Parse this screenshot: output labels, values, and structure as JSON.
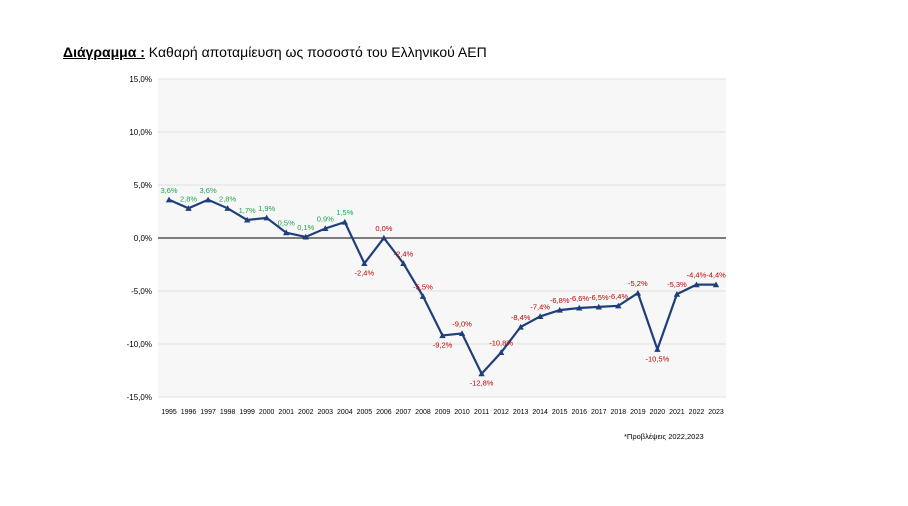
{
  "title": {
    "lead": "Διάγραμμα :",
    "text": "Καθαρή αποταμίευση ως ποσοστό του Ελληνικού ΑΕΠ"
  },
  "footnote": "*Προβλέψεις 2022,2023",
  "colors": {
    "line": "#1f3f7a",
    "positive_label": "#1fa34a",
    "negative_label": "#c00000",
    "plot_bg": "#f7f7f7",
    "grid": "#d9d9d9",
    "zero_line": "#000000"
  },
  "chart_data": {
    "type": "line",
    "categories": [
      "1995",
      "1996",
      "1997",
      "1998",
      "1999",
      "2000",
      "2001",
      "2002",
      "2003",
      "2004",
      "2005",
      "2006",
      "2007",
      "2008",
      "2009",
      "2010",
      "2011",
      "2012",
      "2013",
      "2014",
      "2015",
      "2016",
      "2017",
      "2018",
      "2019",
      "2020",
      "2021",
      "2022",
      "2023"
    ],
    "values": [
      3.6,
      2.8,
      3.6,
      2.8,
      1.7,
      1.9,
      0.5,
      0.1,
      0.9,
      1.5,
      -2.4,
      0.0,
      -2.4,
      -5.5,
      -9.2,
      -9.0,
      -12.8,
      -10.8,
      -8.4,
      -7.4,
      -6.8,
      -6.6,
      -6.5,
      -6.4,
      -5.2,
      -10.5,
      -5.3,
      -4.4,
      -4.4
    ],
    "data_labels": [
      "3,6%",
      "2,8%",
      "3,6%",
      "2,8%",
      "1,7%",
      "1,9%",
      "0,5%",
      "0,1%",
      "0,9%",
      "1,5%",
      "-2,4%",
      "0,0%",
      "-2,4%",
      "-5,5%",
      "-9,2%",
      "-9,0%",
      "-12,8%",
      "-10,8%",
      "-8,4%",
      "-7,4%",
      "-6,8%",
      "-6,6%",
      "-6,5%",
      "-6,4%",
      "-5,2%",
      "-10,5%",
      "-5,3%",
      "-4,4%",
      "-4,4%"
    ],
    "y_ticks": [
      15,
      10,
      5,
      0,
      -5,
      -10,
      -15
    ],
    "y_tick_labels": [
      "15,0%",
      "10,0%",
      "5,0%",
      "0,0%",
      "-5,0%",
      "-10,0%",
      "-15,0%"
    ],
    "ylim": [
      -15,
      15
    ],
    "grid": true,
    "marker": "triangle"
  }
}
